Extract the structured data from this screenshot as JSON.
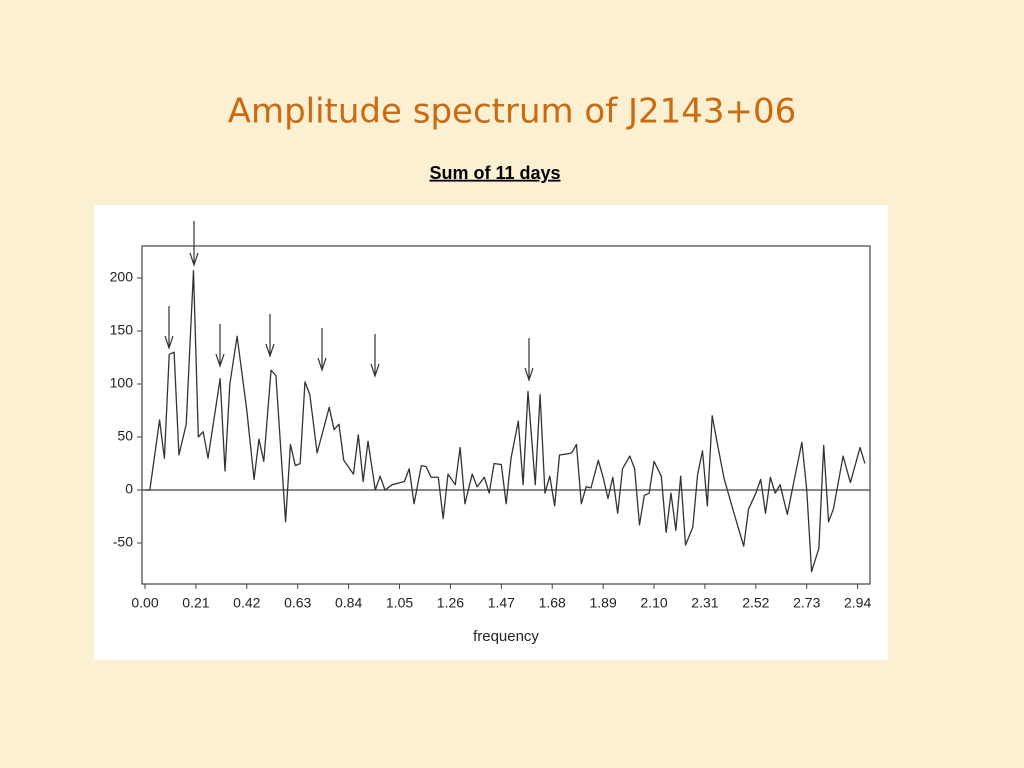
{
  "chart_data": {
    "type": "line",
    "title": "Amplitude spectrum of J2143+06",
    "subtitle": "Sum of 11 days",
    "x_label": "frequency",
    "color": "#333333",
    "x": [
      0.0,
      0.02,
      0.06,
      0.08,
      0.1,
      0.12,
      0.14,
      0.17,
      0.2,
      0.22,
      0.24,
      0.26,
      0.31,
      0.33,
      0.35,
      0.38,
      0.42,
      0.45,
      0.47,
      0.49,
      0.52,
      0.54,
      0.58,
      0.6,
      0.62,
      0.64,
      0.66,
      0.68,
      0.71,
      0.73,
      0.76,
      0.78,
      0.8,
      0.82,
      0.86,
      0.88,
      0.9,
      0.92,
      0.95,
      0.97,
      0.99,
      1.02,
      1.07,
      1.09,
      1.11,
      1.14,
      1.16,
      1.18,
      1.21,
      1.23,
      1.25,
      1.28,
      1.3,
      1.32,
      1.35,
      1.37,
      1.4,
      1.42,
      1.44,
      1.47,
      1.49,
      1.51,
      1.54,
      1.56,
      1.58,
      1.61,
      1.63,
      1.65,
      1.67,
      1.69,
      1.71,
      1.74,
      1.76,
      1.78,
      1.8,
      1.82,
      1.84,
      1.87,
      1.89,
      1.91,
      1.93,
      1.95,
      1.97,
      2.0,
      2.02,
      2.04,
      2.06,
      2.08,
      2.1,
      2.13,
      2.15,
      2.17,
      2.19,
      2.21,
      2.23,
      2.26,
      2.28,
      2.3,
      2.32,
      2.34,
      2.36,
      2.39,
      2.43,
      2.47,
      2.49,
      2.52,
      2.54,
      2.56,
      2.58,
      2.6,
      2.62,
      2.65,
      2.67,
      2.71,
      2.73,
      2.75,
      2.78,
      2.8,
      2.82,
      2.84,
      2.88,
      2.91,
      2.95,
      2.97
    ],
    "values": [
      0,
      0,
      66,
      30,
      128,
      130,
      33,
      62,
      207,
      50,
      55,
      30,
      105,
      18,
      100,
      145,
      75,
      10,
      48,
      27,
      113,
      108,
      -30,
      43,
      23,
      25,
      102,
      90,
      35,
      52,
      78,
      57,
      62,
      28,
      15,
      52,
      8,
      46,
      0,
      13,
      0,
      5,
      8,
      20,
      -13,
      23,
      22,
      12,
      12,
      -27,
      15,
      5,
      40,
      -13,
      15,
      3,
      12,
      -3,
      25,
      24,
      -13,
      30,
      65,
      5,
      93,
      5,
      90,
      -3,
      13,
      -15,
      33,
      34,
      35,
      43,
      -13,
      3,
      2,
      28,
      12,
      -8,
      12,
      -22,
      20,
      32,
      20,
      -33,
      -5,
      -3,
      27,
      13,
      -40,
      -3,
      -38,
      13,
      -52,
      -35,
      15,
      37,
      -15,
      70,
      45,
      10,
      -22,
      -53,
      -18,
      -3,
      10,
      -22,
      12,
      -3,
      5,
      -23,
      0,
      45,
      0,
      -77,
      -55,
      42,
      -30,
      -18,
      32,
      7,
      40,
      25
    ],
    "xlim": [
      -0.0124,
      2.991
    ],
    "ylim": [
      -88.7,
      230.2
    ],
    "xticks": [
      {
        "value": 0,
        "label": "0.00"
      },
      0.21,
      0.42,
      0.63,
      0.84,
      1.05,
      1.26,
      1.47,
      1.68,
      1.89,
      {
        "value": 2.1,
        "label": "2.10"
      },
      2.31,
      2.52,
      2.73,
      2.94
    ],
    "yticks": [
      -50,
      0,
      50,
      100,
      150,
      200
    ],
    "grid": false
  }
}
